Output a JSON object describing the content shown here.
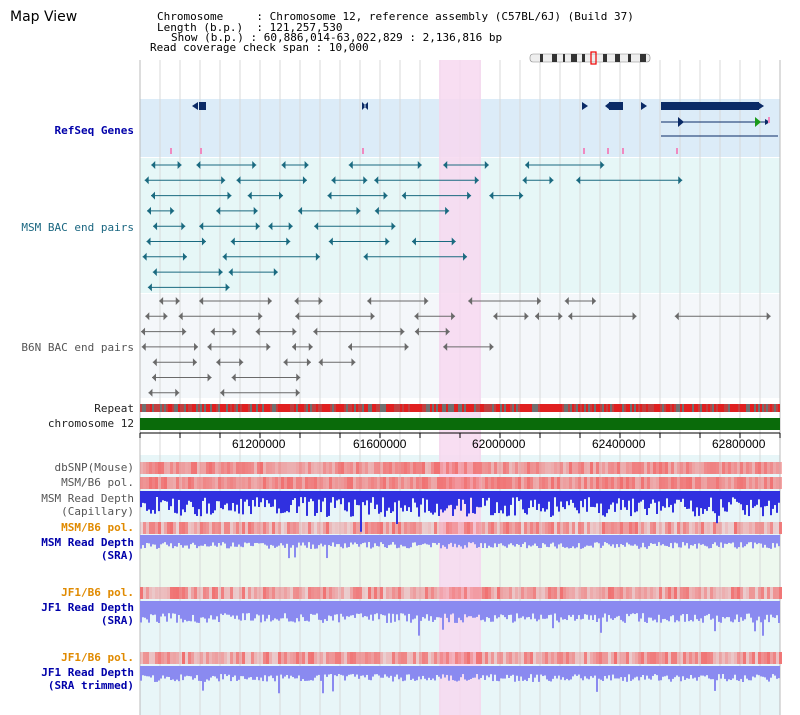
{
  "page": {
    "title": "Map View"
  },
  "info": {
    "chromosome_key": "Chromosome",
    "chromosome_val": "Chromosome 12, reference assembly (C57BL/6J) (Build 37)",
    "length_key": "Length (b.p.)",
    "length_val": "121,257,530",
    "show_key": "Show (b.p.)",
    "show_val": "60,886,014-63,022,829 : 2,136,816 bp",
    "coverage_key": "Read coverage check span",
    "coverage_val": "10,000"
  },
  "tracks": {
    "refseq": "RefSeq Genes",
    "msm_bac": "MSM BAC end pairs",
    "b6n_bac": "B6N BAC end pairs",
    "repeat": "Repeat",
    "chromosome": "chromosome 12",
    "dbsnp": "dbSNP(Mouse)",
    "msm_pol_1": "MSM/B6 pol.",
    "msm_depth_cap_1": "MSM Read Depth",
    "msm_depth_cap_2": "(Capillary)",
    "msm_pol_2": "MSM/B6 pol.",
    "msm_depth_sra_1": "MSM Read Depth",
    "msm_depth_sra_2": "(SRA)",
    "jf1_pol_1": "JF1/B6 pol.",
    "jf1_depth_1": "JF1 Read Depth",
    "jf1_depth_2": "(SRA)",
    "jf1_pol_2": "JF1/B6 pol.",
    "jf1_trim_1": "JF1 Read Depth",
    "jf1_trim_2": "(SRA trimmed)"
  },
  "axis": {
    "ticks": [
      "61200000",
      "61600000",
      "62000000",
      "62400000",
      "62800000"
    ]
  },
  "colors": {
    "refseq_band": "#dcecf8",
    "msm_band": "#e6f7f7",
    "b6n_band": "#f4f7fa",
    "highlight": "#f7d8f0",
    "chromosome": "#0a6b0a",
    "pol": "#f07070",
    "depth_capillary": "#3030e0",
    "depth_sra": "#8a8af0"
  }
}
